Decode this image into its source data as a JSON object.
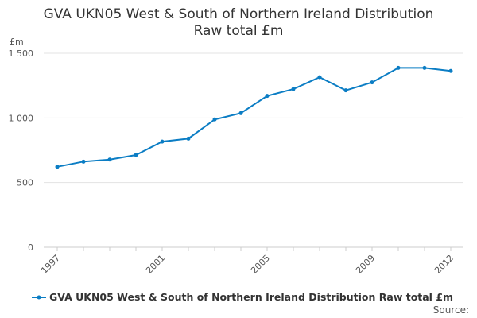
{
  "chart_data": {
    "type": "line",
    "title": [
      "GVA UKN05 West & South of Northern Ireland Distribution",
      "Raw total £m"
    ],
    "ylabel": "£m",
    "xlabel": "",
    "ylim": [
      0,
      1500
    ],
    "yticks": [
      0,
      500,
      1000,
      1500
    ],
    "ytick_labels": [
      "0",
      "500",
      "1 000",
      "1 500"
    ],
    "xtick_labels": [
      "1997",
      "2001",
      "2005",
      "2009",
      "2012"
    ],
    "x": [
      1997,
      1998,
      1999,
      2000,
      2001,
      2002,
      2003,
      2004,
      2005,
      2006,
      2007,
      2008,
      2009,
      2010,
      2011,
      2012
    ],
    "series": [
      {
        "name": "GVA UKN05 West & South of Northern Ireland Distribution Raw total £m",
        "color": "#0b7dc4",
        "values": [
          622,
          662,
          678,
          713,
          817,
          840,
          988,
          1037,
          1170,
          1223,
          1315,
          1213,
          1275,
          1387,
          1387,
          1363
        ]
      }
    ],
    "grid": true,
    "legend": "bottom-left"
  },
  "source": "Source:"
}
